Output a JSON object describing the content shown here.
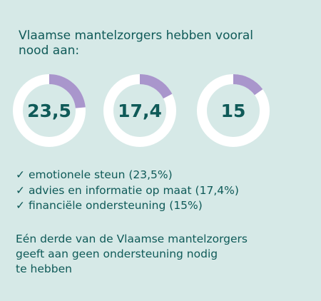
{
  "header": {
    "title_line1": "Vlaamse mantelzorgers hebben vooral",
    "title_line2": "nood aan:"
  },
  "colors": {
    "background": "#d6e9e7",
    "text": "#0f5a58",
    "ring_track": "#ffffff",
    "ring_fill": "#a996cc"
  },
  "chart_data": {
    "type": "pie",
    "variant": "donut",
    "unit": "%",
    "max": 100,
    "labels": [
      "23,5",
      "17,4",
      "15"
    ],
    "values": [
      23.5,
      17.4,
      15
    ]
  },
  "list": {
    "check_icon": "✓",
    "items": [
      "emotionele steun (23,5%)",
      "advies en informatie op maat (17,4%)",
      "financiële ondersteuning (15%)"
    ]
  },
  "note": {
    "line1": "Eén derde van de Vlaamse mantelzorgers",
    "line2": "geeft aan geen ondersteuning nodig",
    "line3": "te hebben"
  }
}
